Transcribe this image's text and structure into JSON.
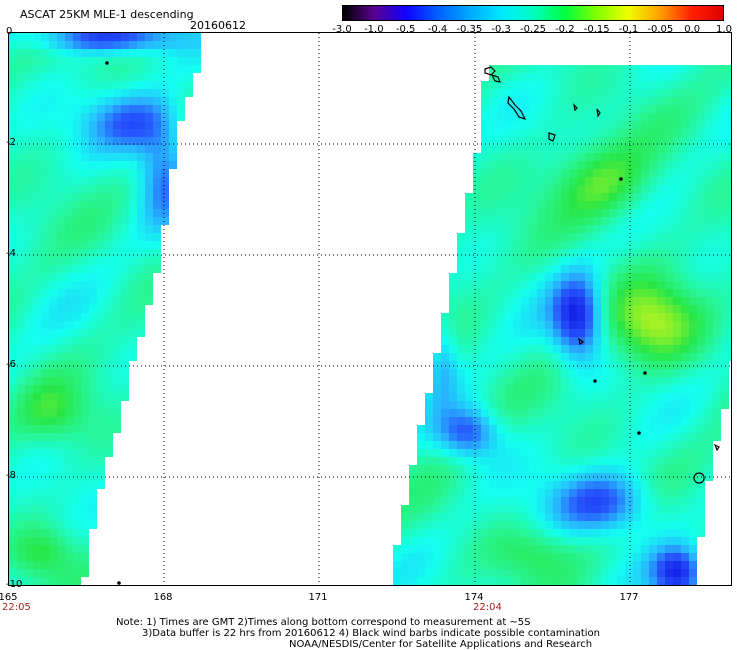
{
  "header": {
    "title": "ASCAT 25KM MLE-1 descending",
    "date": "20160612"
  },
  "colorbar": {
    "labels": [
      "-3.0",
      "-1.0",
      "-0.5",
      "-0.4",
      "-0.35",
      "-0.3",
      "-0.25",
      "-0.2",
      "-0.15",
      "-0.1",
      "-0.05",
      "0.0",
      "1.0"
    ],
    "colors": [
      "#000000",
      "#5a0090",
      "#1000ff",
      "#0060ff",
      "#00a8ff",
      "#00e8ff",
      "#00ffc0",
      "#00ff40",
      "#80ff00",
      "#f0ff00",
      "#ffa000",
      "#ff2000",
      "#e00000"
    ]
  },
  "map": {
    "lon_range": [
      165,
      179
    ],
    "lat_range": [
      -10,
      0
    ],
    "lon_ticks": [
      "165",
      "168",
      "171",
      "174",
      "177"
    ],
    "lat_ticks": [
      "0",
      "-2",
      "-4",
      "-6",
      "-8",
      "-10"
    ],
    "pass_times": [
      {
        "lon": 165,
        "time": "22:05"
      },
      {
        "lon": 174,
        "time": "22:04"
      }
    ]
  },
  "notes": {
    "line1": "Note: 1) Times are GMT 2)Times along bottom correspond to measurement at ~5S",
    "line2": "3)Data buffer is 22 hrs from 20160612 4) Black wind barbs indicate possible contamination",
    "line3": "NOAA/NESDIS/Center for Satellite Applications and Research"
  }
}
